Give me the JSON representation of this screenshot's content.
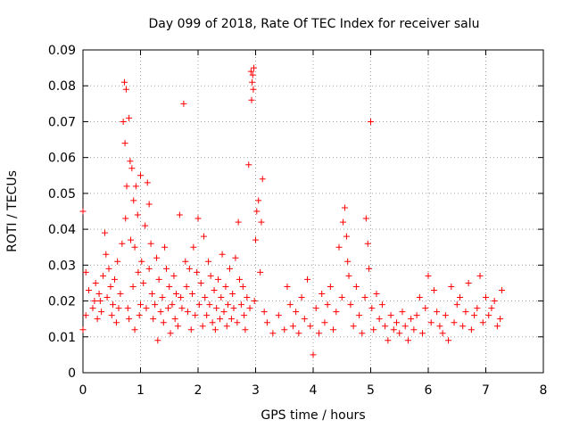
{
  "chart_data": {
    "type": "scatter",
    "title": "Day 099 of 2018, Rate Of TEC Index for receiver salu",
    "xlabel": "GPS time / hours",
    "ylabel": "ROTI / TECUs",
    "xlim": [
      0,
      8
    ],
    "ylim": [
      0,
      0.09
    ],
    "xticks": [
      0,
      1,
      2,
      3,
      4,
      5,
      6,
      7,
      8
    ],
    "xtick_labels": [
      "0",
      "1",
      "2",
      "3",
      "4",
      "5",
      "6",
      "7",
      "8"
    ],
    "yticks": [
      0,
      0.01,
      0.02,
      0.03,
      0.04,
      0.05,
      0.06,
      0.07,
      0.08,
      0.09
    ],
    "ytick_labels": [
      "0",
      "0.01",
      "0.02",
      "0.03",
      "0.04",
      "0.05",
      "0.06",
      "0.07",
      "0.08",
      "0.09"
    ],
    "grid": true,
    "marker": "plus",
    "marker_color": "#ff0000",
    "series": [
      {
        "name": "ROTI",
        "x": [
          0.0,
          0.0,
          0.05,
          0.05,
          0.1,
          0.17,
          0.2,
          0.22,
          0.25,
          0.28,
          0.3,
          0.32,
          0.35,
          0.38,
          0.4,
          0.42,
          0.45,
          0.48,
          0.5,
          0.52,
          0.55,
          0.58,
          0.6,
          0.62,
          0.65,
          0.68,
          0.7,
          0.72,
          0.73,
          0.74,
          0.75,
          0.76,
          0.78,
          0.8,
          0.8,
          0.82,
          0.83,
          0.85,
          0.87,
          0.88,
          0.9,
          0.9,
          0.92,
          0.95,
          0.96,
          0.98,
          1.0,
          1.0,
          1.02,
          1.05,
          1.08,
          1.1,
          1.12,
          1.15,
          1.15,
          1.18,
          1.2,
          1.22,
          1.25,
          1.28,
          1.3,
          1.32,
          1.35,
          1.38,
          1.4,
          1.42,
          1.45,
          1.48,
          1.5,
          1.52,
          1.55,
          1.58,
          1.6,
          1.62,
          1.65,
          1.68,
          1.7,
          1.72,
          1.75,
          1.78,
          1.8,
          1.82,
          1.85,
          1.88,
          1.9,
          1.92,
          1.95,
          1.98,
          2.0,
          2.02,
          2.05,
          2.08,
          2.1,
          2.12,
          2.15,
          2.18,
          2.2,
          2.22,
          2.25,
          2.28,
          2.3,
          2.32,
          2.35,
          2.38,
          2.4,
          2.42,
          2.45,
          2.48,
          2.5,
          2.52,
          2.55,
          2.58,
          2.6,
          2.62,
          2.65,
          2.68,
          2.7,
          2.72,
          2.75,
          2.78,
          2.8,
          2.82,
          2.85,
          2.88,
          2.9,
          2.92,
          2.93,
          2.94,
          2.95,
          2.96,
          2.97,
          2.98,
          3.0,
          3.02,
          3.05,
          3.08,
          3.1,
          3.12,
          3.15,
          3.2,
          3.3,
          3.4,
          3.5,
          3.55,
          3.6,
          3.65,
          3.7,
          3.75,
          3.8,
          3.85,
          3.9,
          3.95,
          4.0,
          4.05,
          4.1,
          4.15,
          4.2,
          4.25,
          4.3,
          4.35,
          4.4,
          4.45,
          4.5,
          4.52,
          4.55,
          4.58,
          4.6,
          4.62,
          4.65,
          4.7,
          4.75,
          4.8,
          4.85,
          4.9,
          4.92,
          4.95,
          4.97,
          5.0,
          5.02,
          5.05,
          5.1,
          5.15,
          5.2,
          5.25,
          5.3,
          5.35,
          5.4,
          5.45,
          5.5,
          5.55,
          5.6,
          5.65,
          5.7,
          5.75,
          5.8,
          5.85,
          5.9,
          5.95,
          6.0,
          6.05,
          6.1,
          6.15,
          6.2,
          6.25,
          6.3,
          6.35,
          6.4,
          6.45,
          6.5,
          6.55,
          6.6,
          6.65,
          6.7,
          6.75,
          6.8,
          6.85,
          6.9,
          6.95,
          7.0,
          7.05,
          7.1,
          7.15,
          7.2,
          7.25,
          7.28
        ],
        "y": [
          0.045,
          0.012,
          0.028,
          0.016,
          0.023,
          0.018,
          0.02,
          0.025,
          0.015,
          0.022,
          0.02,
          0.017,
          0.027,
          0.039,
          0.033,
          0.021,
          0.029,
          0.024,
          0.016,
          0.019,
          0.026,
          0.014,
          0.031,
          0.018,
          0.022,
          0.036,
          0.07,
          0.081,
          0.064,
          0.043,
          0.079,
          0.052,
          0.018,
          0.071,
          0.015,
          0.059,
          0.037,
          0.057,
          0.024,
          0.048,
          0.012,
          0.035,
          0.052,
          0.044,
          0.028,
          0.016,
          0.055,
          0.019,
          0.031,
          0.025,
          0.041,
          0.018,
          0.053,
          0.047,
          0.029,
          0.036,
          0.022,
          0.015,
          0.019,
          0.032,
          0.009,
          0.026,
          0.017,
          0.021,
          0.014,
          0.035,
          0.029,
          0.018,
          0.024,
          0.011,
          0.019,
          0.027,
          0.015,
          0.022,
          0.013,
          0.044,
          0.021,
          0.018,
          0.075,
          0.031,
          0.024,
          0.017,
          0.029,
          0.012,
          0.022,
          0.035,
          0.016,
          0.028,
          0.043,
          0.019,
          0.025,
          0.013,
          0.038,
          0.021,
          0.016,
          0.031,
          0.019,
          0.027,
          0.014,
          0.023,
          0.012,
          0.018,
          0.026,
          0.015,
          0.021,
          0.033,
          0.017,
          0.024,
          0.013,
          0.019,
          0.029,
          0.015,
          0.022,
          0.018,
          0.032,
          0.014,
          0.042,
          0.026,
          0.019,
          0.024,
          0.016,
          0.012,
          0.021,
          0.058,
          0.018,
          0.084,
          0.076,
          0.081,
          0.083,
          0.079,
          0.085,
          0.02,
          0.037,
          0.045,
          0.048,
          0.028,
          0.042,
          0.054,
          0.017,
          0.014,
          0.011,
          0.016,
          0.012,
          0.024,
          0.019,
          0.013,
          0.017,
          0.011,
          0.021,
          0.015,
          0.026,
          0.013,
          0.005,
          0.018,
          0.011,
          0.022,
          0.014,
          0.019,
          0.024,
          0.012,
          0.017,
          0.035,
          0.021,
          0.042,
          0.046,
          0.038,
          0.031,
          0.027,
          0.019,
          0.013,
          0.024,
          0.016,
          0.011,
          0.021,
          0.043,
          0.036,
          0.029,
          0.07,
          0.018,
          0.012,
          0.022,
          0.015,
          0.019,
          0.013,
          0.009,
          0.016,
          0.012,
          0.014,
          0.011,
          0.017,
          0.013,
          0.009,
          0.015,
          0.012,
          0.016,
          0.021,
          0.011,
          0.018,
          0.027,
          0.014,
          0.023,
          0.017,
          0.013,
          0.011,
          0.016,
          0.009,
          0.024,
          0.014,
          0.019,
          0.021,
          0.013,
          0.017,
          0.025,
          0.012,
          0.016,
          0.018,
          0.027,
          0.014,
          0.021,
          0.016,
          0.018,
          0.02,
          0.013,
          0.015,
          0.023
        ]
      }
    ]
  }
}
